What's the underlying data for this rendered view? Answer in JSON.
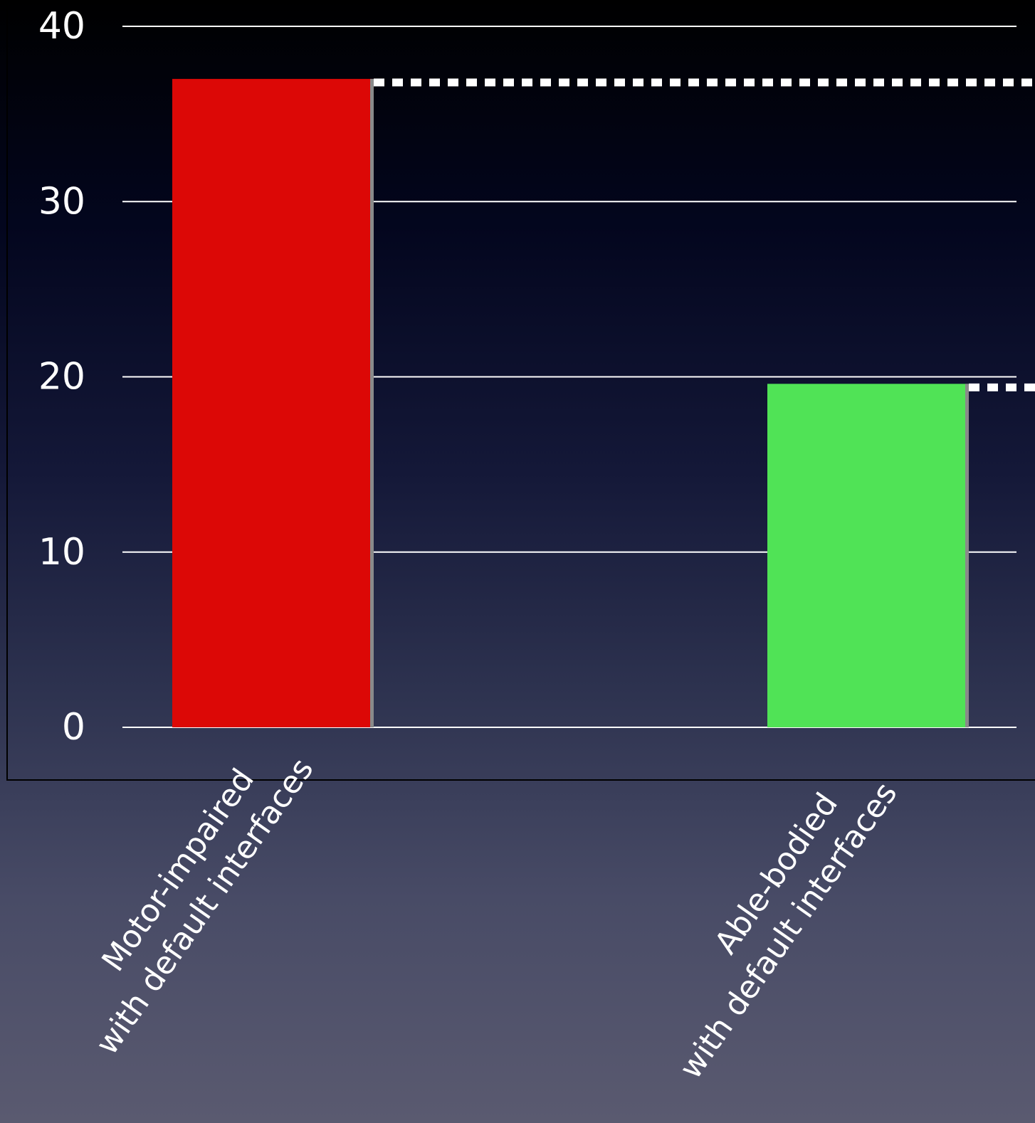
{
  "chart_data": {
    "type": "bar",
    "title": "",
    "xlabel": "",
    "ylabel": "",
    "ylim": [
      0,
      40
    ],
    "yticks": [
      0,
      10,
      20,
      30,
      40
    ],
    "grid": true,
    "categories": [
      {
        "line1": "Motor-impaired",
        "line2": "with default interfaces"
      },
      {
        "line1": "Able-bodied",
        "line2": "with default interfaces"
      }
    ],
    "values": [
      37,
      19.6
    ],
    "colors": [
      "#dc0806",
      "#50e356"
    ],
    "reference_lines": [
      37,
      19.6
    ],
    "reference_line_color": "#ffffff"
  }
}
